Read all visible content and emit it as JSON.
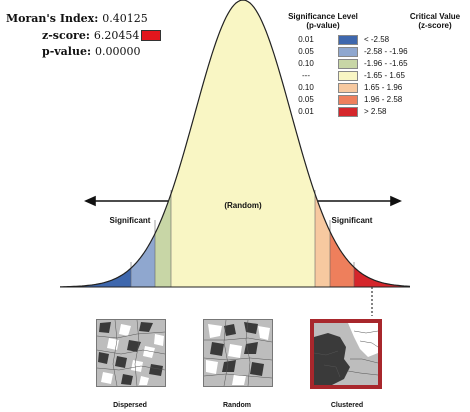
{
  "stats": {
    "morans_label": "Moran's Index:",
    "morans_value": "0.40125",
    "zscore_label": "z-score:",
    "zscore_value": "6.20454",
    "pvalue_label": "p-value:",
    "pvalue_value": "0.00000",
    "zscore_color": "#e3161d"
  },
  "legend": {
    "sig_header_1": "Significance Level",
    "sig_header_2": "(p-value)",
    "crit_header_1": "Critical Value",
    "crit_header_2": "(z-score)",
    "rows": [
      {
        "level": "0.01",
        "critical": "< -2.58",
        "color": "#3e67ad"
      },
      {
        "level": "0.05",
        "critical": "-2.58 - -1.96",
        "color": "#8fa7cf"
      },
      {
        "level": "0.10",
        "critical": "-1.96 - -1.65",
        "color": "#c8d6a6"
      },
      {
        "level": "---",
        "critical": "-1.65 - 1.65",
        "color": "#f9f6c4"
      },
      {
        "level": "0.10",
        "critical": "1.65 - 1.96",
        "color": "#f7c9a0"
      },
      {
        "level": "0.05",
        "critical": "1.96 - 2.58",
        "color": "#ee7f5c"
      },
      {
        "level": "0.01",
        "critical": "> 2.58",
        "color": "#d5262b"
      }
    ]
  },
  "curve": {
    "significant_left": "Significant",
    "random_center": "(Random)",
    "significant_right": "Significant"
  },
  "maps": {
    "dispersed": "Dispersed",
    "random": "Random",
    "clustered": "Clustered"
  }
}
